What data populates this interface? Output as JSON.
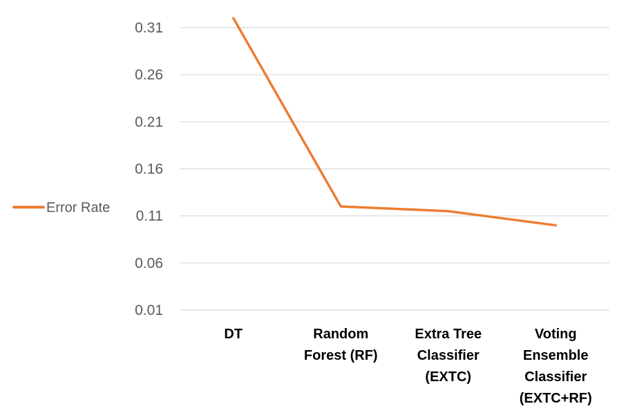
{
  "chart_data": {
    "type": "line",
    "categories": [
      [
        "DT"
      ],
      [
        "Random",
        "Forest (RF)"
      ],
      [
        "Extra Tree",
        "Classifier",
        "(EXTC)"
      ],
      [
        "Voting",
        "Ensemble",
        "Classifier",
        "(EXTC+RF)"
      ]
    ],
    "series": [
      {
        "name": "Error Rate",
        "values": [
          0.32,
          0.12,
          0.115,
          0.1
        ],
        "color": "#ED7D31"
      }
    ],
    "yticks": [
      0.01,
      0.06,
      0.11,
      0.16,
      0.21,
      0.26,
      0.31
    ],
    "ylim": [
      0.01,
      0.335
    ],
    "grid": true,
    "legend_position": "left"
  }
}
